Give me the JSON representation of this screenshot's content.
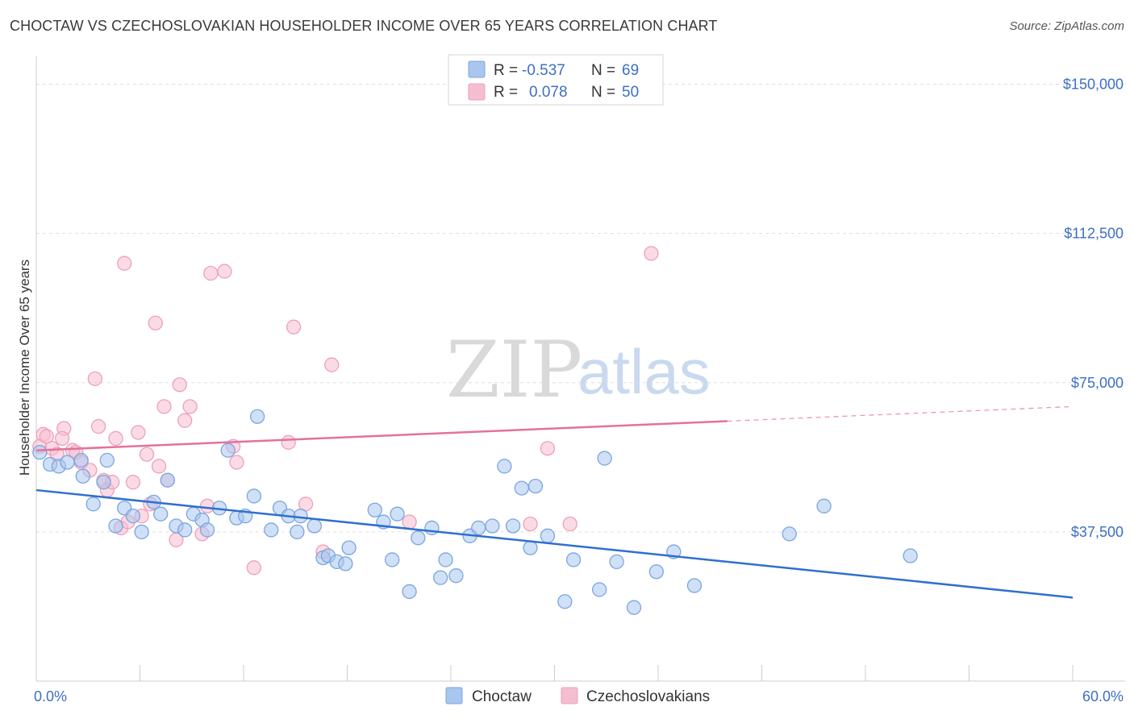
{
  "title": "CHOCTAW VS CZECHOSLOVAKIAN HOUSEHOLDER INCOME OVER 65 YEARS CORRELATION CHART",
  "source": "Source: ZipAtlas.com",
  "watermark": {
    "zip": "ZIP",
    "atlas": "atlas"
  },
  "legend": {
    "rows": [
      {
        "r_label": "R = ",
        "r_value": "-0.537",
        "n_label": "N = ",
        "n_value": "69"
      },
      {
        "r_label": "R = ",
        "r_value": "0.078",
        "n_label": "N = ",
        "n_value": "50"
      }
    ]
  },
  "bottom_legend": [
    "Choctaw",
    "Czechoslovakians"
  ],
  "colors": {
    "blue_fill": "#a9c6ef",
    "blue_stroke": "#7aa6e0",
    "blue_line": "#2f6fce",
    "pink_fill": "#f5bdd0",
    "pink_stroke": "#eea0ba",
    "pink_line": "#e4719a",
    "grid": "#dddddd",
    "axis_text": "#3d6fc4"
  },
  "chart_data": {
    "type": "scatter",
    "ylabel": "Householder Income Over 65 years",
    "xlim": [
      0,
      60
    ],
    "ylim": [
      0,
      157000
    ],
    "x_tick_labels": {
      "left": "0.0%",
      "right": "60.0%"
    },
    "y_ticks": [
      {
        "value": 37500,
        "label": "$37,500"
      },
      {
        "value": 75000,
        "label": "$75,000"
      },
      {
        "value": 112500,
        "label": "$112,500"
      },
      {
        "value": 150000,
        "label": "$150,000"
      }
    ],
    "series": [
      {
        "name": "Choctaw",
        "color": "#a9c6ef",
        "trend": {
          "x0": 0,
          "y0": 48000,
          "x1": 60,
          "y1": 21000,
          "dash_from": null
        },
        "points": [
          [
            0.2,
            57500
          ],
          [
            0.8,
            54500
          ],
          [
            1.3,
            54000
          ],
          [
            1.8,
            55000
          ],
          [
            2.6,
            55500
          ],
          [
            2.7,
            51500
          ],
          [
            3.3,
            44500
          ],
          [
            3.9,
            50000
          ],
          [
            4.1,
            55500
          ],
          [
            4.6,
            39000
          ],
          [
            5.1,
            43500
          ],
          [
            5.6,
            41500
          ],
          [
            6.1,
            37500
          ],
          [
            6.8,
            45000
          ],
          [
            7.2,
            42000
          ],
          [
            7.6,
            50500
          ],
          [
            8.1,
            39000
          ],
          [
            8.6,
            38000
          ],
          [
            9.1,
            42000
          ],
          [
            9.6,
            40500
          ],
          [
            9.9,
            38000
          ],
          [
            10.6,
            43500
          ],
          [
            11.1,
            58000
          ],
          [
            11.6,
            41000
          ],
          [
            12.1,
            41500
          ],
          [
            12.6,
            46500
          ],
          [
            12.8,
            66500
          ],
          [
            13.6,
            38000
          ],
          [
            14.1,
            43500
          ],
          [
            14.6,
            41500
          ],
          [
            15.1,
            37500
          ],
          [
            15.3,
            41500
          ],
          [
            16.1,
            39000
          ],
          [
            16.6,
            31000
          ],
          [
            16.9,
            31500
          ],
          [
            17.4,
            30000
          ],
          [
            17.9,
            29500
          ],
          [
            18.1,
            33500
          ],
          [
            19.6,
            43000
          ],
          [
            20.1,
            40000
          ],
          [
            20.6,
            30500
          ],
          [
            20.9,
            42000
          ],
          [
            21.6,
            22500
          ],
          [
            22.1,
            36000
          ],
          [
            22.9,
            38500
          ],
          [
            23.4,
            26000
          ],
          [
            23.7,
            30500
          ],
          [
            24.3,
            26500
          ],
          [
            25.1,
            36500
          ],
          [
            25.6,
            38500
          ],
          [
            26.4,
            39000
          ],
          [
            27.1,
            54000
          ],
          [
            27.6,
            39000
          ],
          [
            28.1,
            48500
          ],
          [
            28.6,
            33500
          ],
          [
            28.9,
            49000
          ],
          [
            29.6,
            36500
          ],
          [
            30.6,
            20000
          ],
          [
            31.1,
            30500
          ],
          [
            32.6,
            23000
          ],
          [
            32.9,
            56000
          ],
          [
            33.6,
            30000
          ],
          [
            34.6,
            18500
          ],
          [
            35.9,
            27500
          ],
          [
            36.9,
            32500
          ],
          [
            38.1,
            24000
          ],
          [
            43.6,
            37000
          ],
          [
            45.6,
            44000
          ],
          [
            50.6,
            31500
          ]
        ]
      },
      {
        "name": "Czechoslovakians",
        "color": "#f5bdd0",
        "trend": {
          "x0": 0,
          "y0": 58000,
          "x1": 60,
          "y1": 69000,
          "dash_from": 40
        },
        "points": [
          [
            0.2,
            59000
          ],
          [
            0.4,
            62000
          ],
          [
            0.6,
            61500
          ],
          [
            0.9,
            58500
          ],
          [
            1.2,
            57000
          ],
          [
            1.6,
            63500
          ],
          [
            2.1,
            58000
          ],
          [
            2.3,
            57500
          ],
          [
            2.6,
            55000
          ],
          [
            3.1,
            53000
          ],
          [
            3.4,
            76000
          ],
          [
            3.6,
            64000
          ],
          [
            3.9,
            50500
          ],
          [
            4.1,
            48000
          ],
          [
            4.4,
            50000
          ],
          [
            4.6,
            61000
          ],
          [
            4.9,
            38500
          ],
          [
            5.1,
            105000
          ],
          [
            5.3,
            40000
          ],
          [
            5.6,
            50000
          ],
          [
            5.9,
            62500
          ],
          [
            6.1,
            41500
          ],
          [
            6.4,
            57000
          ],
          [
            6.6,
            44500
          ],
          [
            6.9,
            90000
          ],
          [
            7.1,
            54000
          ],
          [
            7.4,
            69000
          ],
          [
            7.6,
            50500
          ],
          [
            8.1,
            35500
          ],
          [
            8.3,
            74500
          ],
          [
            8.6,
            65500
          ],
          [
            8.9,
            69000
          ],
          [
            9.6,
            37000
          ],
          [
            9.9,
            44000
          ],
          [
            10.1,
            102500
          ],
          [
            10.9,
            103000
          ],
          [
            11.4,
            59000
          ],
          [
            11.6,
            55000
          ],
          [
            12.6,
            28500
          ],
          [
            14.6,
            60000
          ],
          [
            14.9,
            89000
          ],
          [
            15.6,
            44500
          ],
          [
            16.6,
            32500
          ],
          [
            17.1,
            79500
          ],
          [
            21.6,
            40000
          ],
          [
            28.6,
            39500
          ],
          [
            29.6,
            58500
          ],
          [
            30.9,
            39500
          ],
          [
            35.6,
            107500
          ],
          [
            1.5,
            61000
          ]
        ]
      }
    ]
  }
}
